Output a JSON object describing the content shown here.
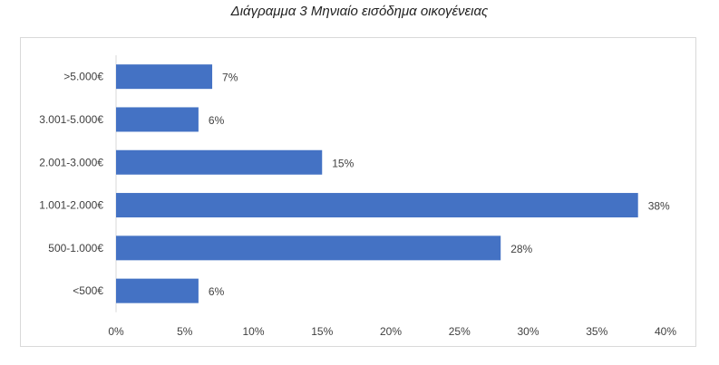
{
  "caption": "Διάγραμμα 3 Μηνιαίο εισόδημα οικογένειας",
  "colors": {
    "bar": "#4472c4",
    "text": "#404040",
    "border": "#d9d9d9"
  },
  "chart_data": {
    "type": "bar",
    "orientation": "horizontal",
    "title": "Διάγραμμα 3 Μηνιαίο εισόδημα οικογένειας",
    "categories": [
      ">5.000€",
      "3.001-5.000€",
      "2.001-3.000€",
      "1.001-2.000€",
      "500-1.000€",
      "<500€"
    ],
    "values": [
      7,
      6,
      15,
      38,
      28,
      6
    ],
    "data_labels": [
      "7%",
      "6%",
      "15%",
      "38%",
      "28%",
      "6%"
    ],
    "xlim": [
      0,
      40
    ],
    "xticks": [
      "0%",
      "5%",
      "10%",
      "15%",
      "20%",
      "25%",
      "30%",
      "35%",
      "40%"
    ],
    "grid": false,
    "legend": "none"
  }
}
